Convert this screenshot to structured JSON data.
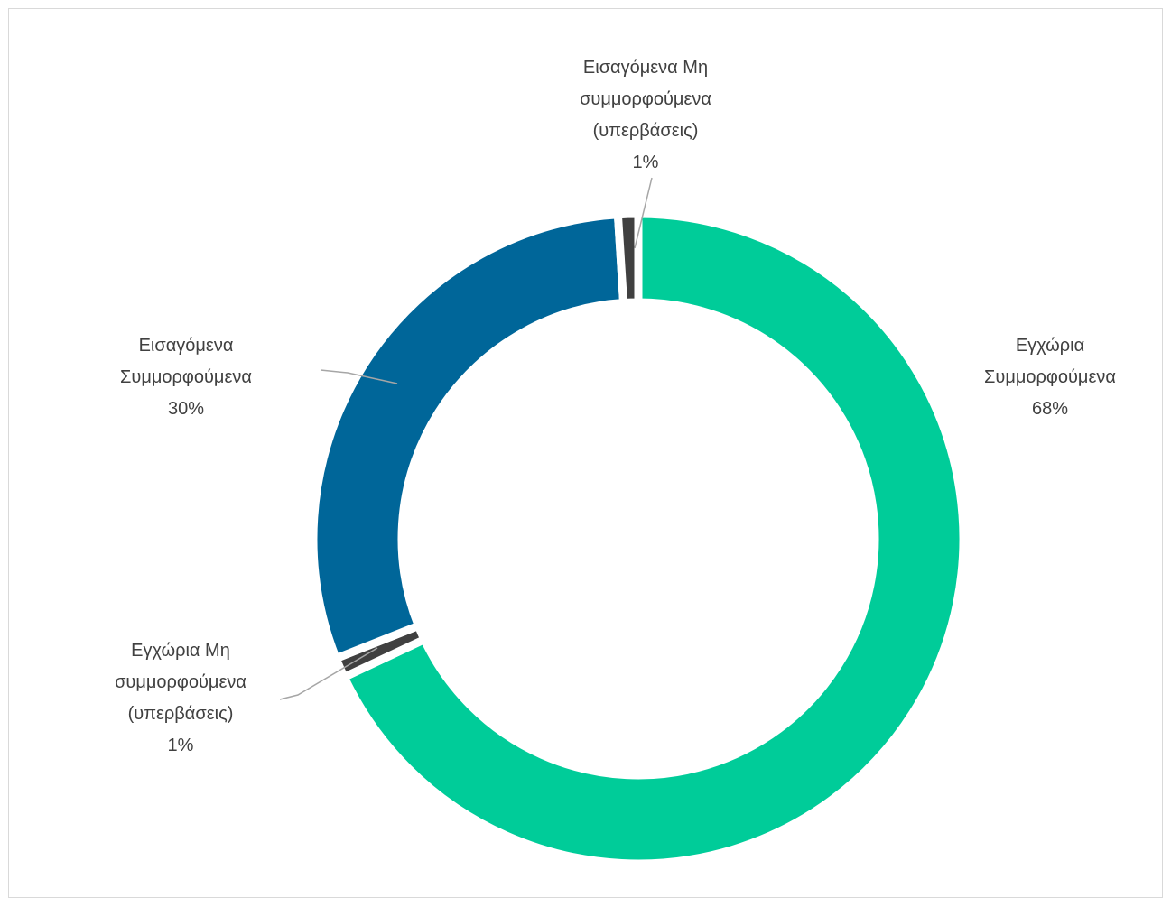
{
  "chart_data": {
    "type": "donut",
    "categories": [
      "Εγχώρια Συμμορφούμενα",
      "Εγχώρια Μη συμμορφούμενα (υπερβάσεις)",
      "Εισαγόμενα Συμμορφούμενα",
      "Εισαγόμενα Μη συμμορφούμενα (υπερβάσεις)"
    ],
    "values": [
      68,
      1,
      30,
      1
    ],
    "value_labels": [
      "68%",
      "1%",
      "30%",
      "1%"
    ],
    "colors": [
      "#00cc99",
      "#404040",
      "#006699",
      "#404040"
    ]
  }
}
